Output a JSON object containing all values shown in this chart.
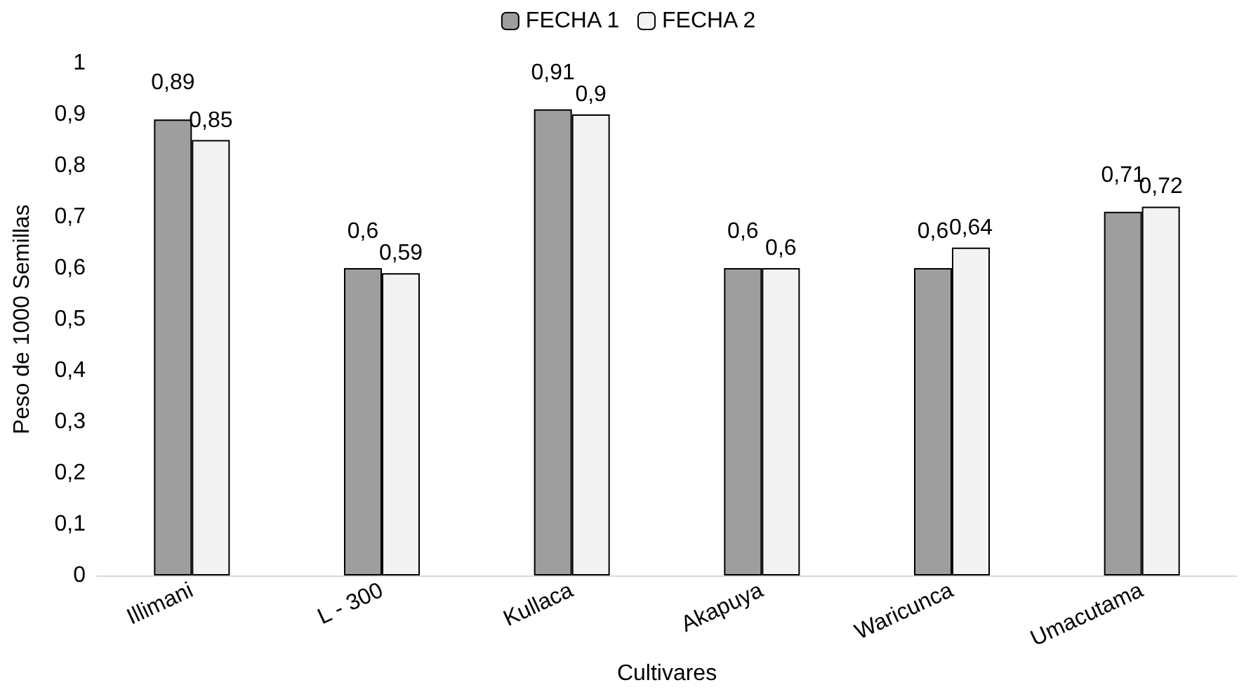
{
  "chart_data": {
    "type": "bar",
    "xlabel": "Cultivares",
    "ylabel": "Peso de 1000 Semillas",
    "categories": [
      "Illimani",
      "L - 300",
      "Kullaca",
      "Akapuya",
      "Waricunca",
      "Umacutama"
    ],
    "series": [
      {
        "name": "FECHA 1",
        "color": "#9e9e9e",
        "values": [
          0.89,
          0.6,
          0.91,
          0.6,
          0.6,
          0.71
        ],
        "value_labels": [
          "0,89",
          "0,6",
          "0,91",
          "0,6",
          "0,6",
          "0,71"
        ]
      },
      {
        "name": "FECHA 2",
        "color": "#f2f2f2",
        "values": [
          0.85,
          0.59,
          0.9,
          0.6,
          0.64,
          0.72
        ],
        "value_labels": [
          "0,85",
          "0,59",
          "0,9",
          "0,6",
          "0,64",
          "0,72"
        ]
      }
    ],
    "ylim": [
      0,
      1
    ],
    "yticks": [
      {
        "value": 0,
        "label": "0"
      },
      {
        "value": 0.1,
        "label": "0,1"
      },
      {
        "value": 0.2,
        "label": "0,2"
      },
      {
        "value": 0.3,
        "label": "0,3"
      },
      {
        "value": 0.4,
        "label": "0,4"
      },
      {
        "value": 0.5,
        "label": "0,5"
      },
      {
        "value": 0.6,
        "label": "0,6"
      },
      {
        "value": 0.7,
        "label": "0,7"
      },
      {
        "value": 0.8,
        "label": "0,8"
      },
      {
        "value": 0.9,
        "label": "0,9"
      },
      {
        "value": 1,
        "label": "1"
      }
    ],
    "grid": false,
    "legend": "top"
  }
}
